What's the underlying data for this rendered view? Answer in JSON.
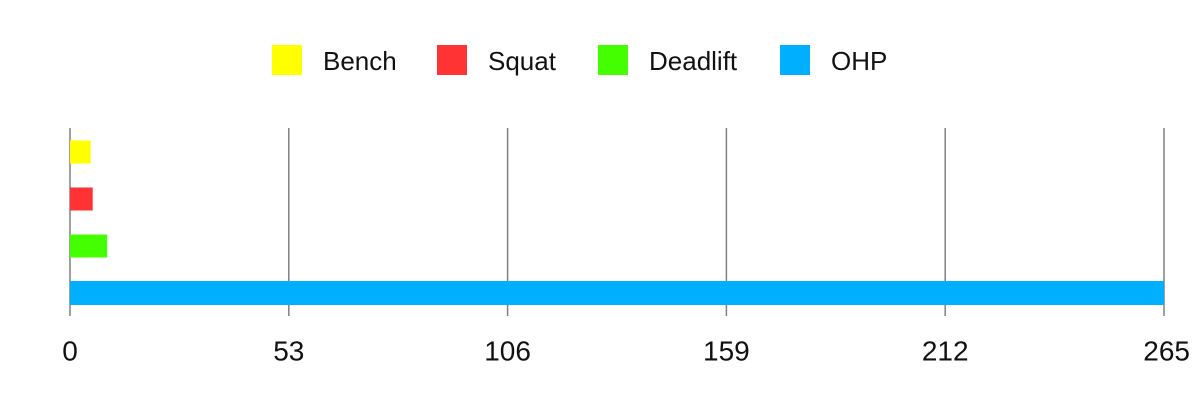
{
  "chart_data": {
    "type": "bar",
    "orientation": "horizontal",
    "series": [
      {
        "name": "Bench",
        "value": 5,
        "color": "#FFFF00"
      },
      {
        "name": "Squat",
        "value": 5.5,
        "color": "#FF3333"
      },
      {
        "name": "Deadlift",
        "value": 9,
        "color": "#44FF00"
      },
      {
        "name": "OHP",
        "value": 265,
        "color": "#00B0FF"
      }
    ],
    "xlim": [
      0,
      265
    ],
    "x_ticks": [
      "0",
      "53",
      "106",
      "159",
      "212",
      "265"
    ],
    "x_tick_values": [
      0,
      53,
      106,
      159,
      212,
      265
    ],
    "grid": true,
    "legend_position": "top-center"
  }
}
